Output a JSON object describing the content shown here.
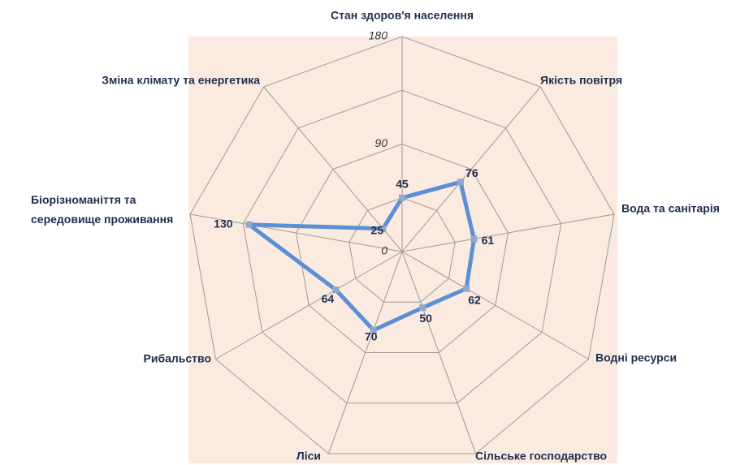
{
  "chart_data": {
    "type": "radar",
    "categories": [
      "Стан здоров'я населення",
      "Якість повітря",
      "Вода та санітарія",
      "Водні ресурси",
      "Сільське господарство",
      "Ліси",
      "Рибальство",
      "Біорізноманіття та середовище проживання",
      "Зміна клімату та енергетика"
    ],
    "values": [
      45,
      76,
      61,
      62,
      50,
      70,
      64,
      130,
      25
    ],
    "color": "#5b8fd6",
    "marker_color": "#8fa9c8",
    "ylim": [
      0,
      180
    ],
    "yticks": [
      0,
      90,
      180
    ],
    "minor_yticks": [
      45,
      135
    ],
    "grid": true,
    "background": "#fbeadf"
  }
}
